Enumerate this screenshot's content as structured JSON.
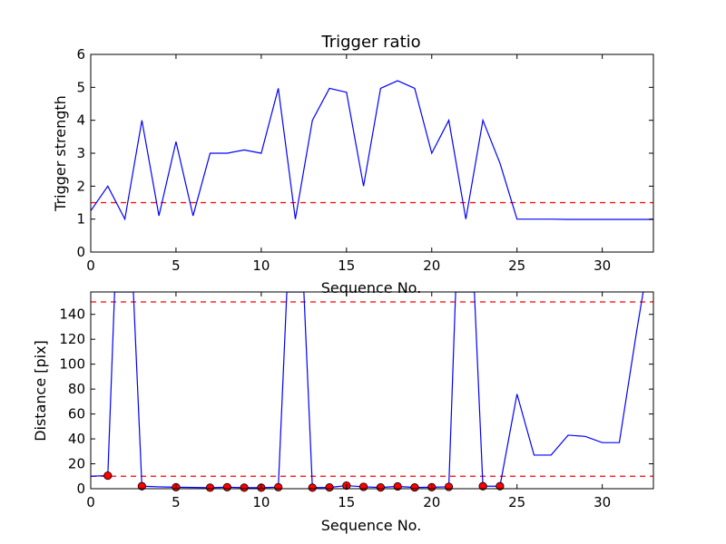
{
  "chart_data": [
    {
      "type": "line",
      "title": "Trigger ratio",
      "xlabel": "Sequence No.",
      "ylabel": "Trigger strength",
      "xlim": [
        0,
        33
      ],
      "ylim": [
        0,
        6
      ],
      "xticks": [
        "0",
        "5",
        "10",
        "15",
        "20",
        "25",
        "30"
      ],
      "yticks": [
        "0",
        "1",
        "2",
        "3",
        "4",
        "5",
        "6"
      ],
      "series": [
        {
          "color": "#0000ff",
          "x": [
            0,
            1,
            2,
            3,
            4,
            5,
            6,
            7,
            8,
            9,
            10,
            11,
            12,
            13,
            14,
            15,
            16,
            17,
            18,
            19,
            20,
            21,
            22,
            23,
            24,
            25,
            26,
            27,
            28,
            29,
            30,
            31,
            32,
            33
          ],
          "values": [
            1.25,
            2.0,
            1.0,
            4.0,
            1.1,
            3.35,
            1.1,
            3.0,
            3.0,
            3.1,
            3.0,
            4.97,
            1.0,
            4.0,
            4.97,
            4.85,
            2.0,
            4.97,
            5.2,
            4.97,
            3.0,
            4.0,
            1.0,
            4.0,
            2.7,
            1.0,
            1.0,
            1.0,
            0.99,
            0.99,
            0.99,
            0.99,
            0.99,
            0.99
          ]
        }
      ],
      "threshold": {
        "value": 1.5,
        "color": "#ff0000",
        "style": "dashed"
      },
      "grid": false
    },
    {
      "type": "line",
      "title": "",
      "xlabel": "Sequence No.",
      "ylabel": "Distance [pix]",
      "xlim": [
        0,
        33
      ],
      "ylim": [
        0,
        158
      ],
      "xticks": [
        "0",
        "5",
        "10",
        "15",
        "20",
        "25",
        "30"
      ],
      "yticks": [
        "0",
        "20",
        "40",
        "60",
        "80",
        "100",
        "120",
        "140"
      ],
      "series": [
        {
          "color": "#0000ff",
          "x": [
            0,
            1,
            1.4,
            2.5,
            3,
            4,
            5,
            6,
            7,
            8,
            9,
            10,
            11,
            11.5,
            12.5,
            13,
            14,
            15,
            16,
            17,
            18,
            19,
            20,
            21,
            21.4,
            22.5,
            23,
            24,
            25,
            26,
            27,
            28,
            29,
            30,
            31,
            32,
            32.4
          ],
          "values": [
            10,
            10.5,
            158,
            158,
            2,
            1.5,
            1.2,
            1.0,
            0.8,
            1.2,
            0.8,
            0.8,
            1.2,
            158,
            158,
            0.8,
            1.0,
            2.5,
            1.5,
            1.0,
            1.8,
            1.0,
            1.2,
            1.5,
            158,
            158,
            2.0,
            2.0,
            76,
            27,
            27,
            43,
            42,
            37,
            37,
            125,
            158
          ]
        }
      ],
      "markers": {
        "color": "#ff0000",
        "x": [
          1,
          3,
          5,
          7,
          8,
          9,
          10,
          11,
          13,
          14,
          15,
          16,
          17,
          18,
          19,
          20,
          21,
          23,
          24
        ],
        "values": [
          10.5,
          2,
          1.2,
          0.8,
          1.2,
          0.8,
          0.8,
          1.2,
          0.8,
          1.0,
          2.5,
          1.5,
          1.0,
          1.8,
          1.0,
          1.2,
          1.5,
          2.0,
          2.0
        ]
      },
      "thresholds": [
        {
          "value": 150,
          "color": "#ff0000",
          "style": "dashed"
        },
        {
          "value": 10,
          "color": "#ff0000",
          "style": "dashed"
        }
      ],
      "grid": false
    }
  ]
}
